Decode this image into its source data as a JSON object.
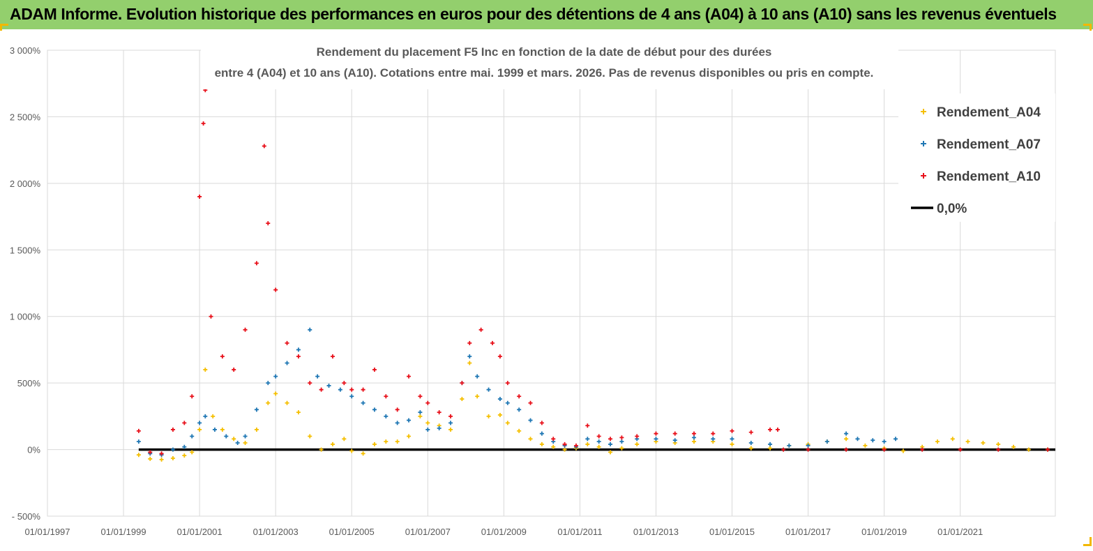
{
  "header": {
    "title": "ADAM Informe. Evolution historique des performances en euros pour des détentions de 4 ans (A04) à 10 ans (A10) sans les revenus éventuels"
  },
  "colors": {
    "banner": "#93cf6d",
    "a04": "#f5bf00",
    "a07": "#1f77b4",
    "a10": "#e8101a",
    "zero": "#000000",
    "grid": "#d9d9d9"
  },
  "chart_data": {
    "type": "scatter",
    "title_lines": [
      "Rendement du placement F5 Inc en fonction de la date de début pour des durées",
      "entre 4 (A04) et 10 ans (A10).  Cotations entre mai. 1999 et mars. 2026. Pas de revenus disponibles ou pris en compte."
    ],
    "x_tick_labels": [
      "01/01/1997",
      "01/01/1999",
      "01/01/2001",
      "01/01/2003",
      "01/01/2005",
      "01/01/2007",
      "01/01/2009",
      "01/01/2011",
      "01/01/2013",
      "01/01/2015",
      "01/01/2017",
      "01/01/2019",
      "01/01/2021"
    ],
    "x_range_years": [
      1997,
      2023.5
    ],
    "y_tick_labels": [
      "3 000%",
      "2 500%",
      "2 000%",
      "1 500%",
      "1 000%",
      "500%",
      "0%",
      "- 500%"
    ],
    "y_ticks": [
      3000,
      2500,
      2000,
      1500,
      1000,
      500,
      0,
      -500
    ],
    "ylim": [
      -500,
      3000
    ],
    "series": [
      {
        "name": "Rendement_A04",
        "marker": "+",
        "points": [
          [
            1999.4,
            -40
          ],
          [
            1999.7,
            -70
          ],
          [
            2000.0,
            -75
          ],
          [
            2000.3,
            -65
          ],
          [
            2000.6,
            -45
          ],
          [
            2000.8,
            -20
          ],
          [
            2001.0,
            150
          ],
          [
            2001.15,
            600
          ],
          [
            2001.35,
            250
          ],
          [
            2001.6,
            150
          ],
          [
            2001.9,
            80
          ],
          [
            2002.2,
            50
          ],
          [
            2002.5,
            150
          ],
          [
            2002.8,
            350
          ],
          [
            2003.0,
            420
          ],
          [
            2003.3,
            350
          ],
          [
            2003.6,
            280
          ],
          [
            2003.9,
            100
          ],
          [
            2004.2,
            0
          ],
          [
            2004.5,
            40
          ],
          [
            2004.8,
            80
          ],
          [
            2005.0,
            -10
          ],
          [
            2005.3,
            -30
          ],
          [
            2005.6,
            40
          ],
          [
            2005.9,
            60
          ],
          [
            2006.2,
            60
          ],
          [
            2006.5,
            100
          ],
          [
            2006.8,
            250
          ],
          [
            2007.0,
            200
          ],
          [
            2007.3,
            180
          ],
          [
            2007.6,
            150
          ],
          [
            2007.9,
            380
          ],
          [
            2008.1,
            650
          ],
          [
            2008.3,
            400
          ],
          [
            2008.6,
            250
          ],
          [
            2008.9,
            260
          ],
          [
            2009.1,
            200
          ],
          [
            2009.4,
            140
          ],
          [
            2009.7,
            80
          ],
          [
            2010.0,
            40
          ],
          [
            2010.3,
            20
          ],
          [
            2010.6,
            0
          ],
          [
            2010.9,
            10
          ],
          [
            2011.2,
            40
          ],
          [
            2011.5,
            20
          ],
          [
            2011.8,
            -20
          ],
          [
            2012.1,
            10
          ],
          [
            2012.5,
            40
          ],
          [
            2013.0,
            60
          ],
          [
            2013.5,
            50
          ],
          [
            2014.0,
            60
          ],
          [
            2014.5,
            60
          ],
          [
            2015.0,
            40
          ],
          [
            2015.5,
            10
          ],
          [
            2016.0,
            10
          ],
          [
            2016.5,
            30
          ],
          [
            2017.0,
            40
          ],
          [
            2017.5,
            60
          ],
          [
            2018.0,
            80
          ],
          [
            2018.5,
            30
          ],
          [
            2019.0,
            10
          ],
          [
            2019.5,
            -10
          ],
          [
            2020.0,
            20
          ],
          [
            2020.4,
            60
          ],
          [
            2020.8,
            80
          ],
          [
            2021.2,
            60
          ],
          [
            2021.6,
            50
          ],
          [
            2022.0,
            40
          ],
          [
            2022.4,
            20
          ],
          [
            2022.8,
            0
          ],
          [
            2023.3,
            0
          ]
        ]
      },
      {
        "name": "Rendement_A07",
        "marker": "+",
        "points": [
          [
            1999.4,
            60
          ],
          [
            1999.7,
            -30
          ],
          [
            2000.0,
            -40
          ],
          [
            2000.3,
            0
          ],
          [
            2000.6,
            20
          ],
          [
            2000.8,
            100
          ],
          [
            2001.0,
            200
          ],
          [
            2001.15,
            250
          ],
          [
            2001.4,
            150
          ],
          [
            2001.7,
            100
          ],
          [
            2002.0,
            50
          ],
          [
            2002.2,
            100
          ],
          [
            2002.5,
            300
          ],
          [
            2002.8,
            500
          ],
          [
            2003.0,
            550
          ],
          [
            2003.3,
            650
          ],
          [
            2003.6,
            750
          ],
          [
            2003.9,
            900
          ],
          [
            2004.1,
            550
          ],
          [
            2004.4,
            480
          ],
          [
            2004.7,
            450
          ],
          [
            2005.0,
            400
          ],
          [
            2005.3,
            350
          ],
          [
            2005.6,
            300
          ],
          [
            2005.9,
            250
          ],
          [
            2006.2,
            200
          ],
          [
            2006.5,
            220
          ],
          [
            2006.8,
            280
          ],
          [
            2007.0,
            150
          ],
          [
            2007.3,
            160
          ],
          [
            2007.6,
            200
          ],
          [
            2007.9,
            500
          ],
          [
            2008.1,
            700
          ],
          [
            2008.3,
            550
          ],
          [
            2008.6,
            450
          ],
          [
            2008.9,
            380
          ],
          [
            2009.1,
            350
          ],
          [
            2009.4,
            300
          ],
          [
            2009.7,
            220
          ],
          [
            2010.0,
            120
          ],
          [
            2010.3,
            60
          ],
          [
            2010.6,
            30
          ],
          [
            2010.9,
            20
          ],
          [
            2011.2,
            80
          ],
          [
            2011.5,
            60
          ],
          [
            2011.8,
            40
          ],
          [
            2012.1,
            60
          ],
          [
            2012.5,
            80
          ],
          [
            2013.0,
            80
          ],
          [
            2013.5,
            70
          ],
          [
            2014.0,
            90
          ],
          [
            2014.5,
            80
          ],
          [
            2015.0,
            80
          ],
          [
            2015.5,
            50
          ],
          [
            2016.0,
            40
          ],
          [
            2016.5,
            30
          ],
          [
            2017.0,
            30
          ],
          [
            2017.5,
            60
          ],
          [
            2018.0,
            120
          ],
          [
            2018.3,
            80
          ],
          [
            2018.7,
            70
          ],
          [
            2019.0,
            60
          ],
          [
            2019.3,
            80
          ]
        ]
      },
      {
        "name": "Rendement_A10",
        "marker": "+",
        "points": [
          [
            1999.4,
            140
          ],
          [
            1999.7,
            -20
          ],
          [
            2000.0,
            -30
          ],
          [
            2000.3,
            150
          ],
          [
            2000.6,
            200
          ],
          [
            2000.8,
            400
          ],
          [
            2001.0,
            1900
          ],
          [
            2001.1,
            2450
          ],
          [
            2001.15,
            2700
          ],
          [
            2001.3,
            1000
          ],
          [
            2001.6,
            700
          ],
          [
            2001.9,
            600
          ],
          [
            2002.2,
            900
          ],
          [
            2002.5,
            1400
          ],
          [
            2002.7,
            2280
          ],
          [
            2002.8,
            1700
          ],
          [
            2003.0,
            1200
          ],
          [
            2003.3,
            800
          ],
          [
            2003.6,
            700
          ],
          [
            2003.9,
            500
          ],
          [
            2004.2,
            450
          ],
          [
            2004.5,
            700
          ],
          [
            2004.8,
            500
          ],
          [
            2005.0,
            450
          ],
          [
            2005.3,
            450
          ],
          [
            2005.6,
            600
          ],
          [
            2005.9,
            400
          ],
          [
            2006.2,
            300
          ],
          [
            2006.5,
            550
          ],
          [
            2006.8,
            400
          ],
          [
            2007.0,
            350
          ],
          [
            2007.3,
            280
          ],
          [
            2007.6,
            250
          ],
          [
            2007.9,
            500
          ],
          [
            2008.1,
            800
          ],
          [
            2008.4,
            900
          ],
          [
            2008.7,
            800
          ],
          [
            2008.9,
            700
          ],
          [
            2009.1,
            500
          ],
          [
            2009.4,
            400
          ],
          [
            2009.7,
            350
          ],
          [
            2010.0,
            200
          ],
          [
            2010.3,
            80
          ],
          [
            2010.6,
            40
          ],
          [
            2010.9,
            30
          ],
          [
            2011.2,
            180
          ],
          [
            2011.5,
            100
          ],
          [
            2011.8,
            80
          ],
          [
            2012.1,
            90
          ],
          [
            2012.5,
            100
          ],
          [
            2013.0,
            120
          ],
          [
            2013.5,
            120
          ],
          [
            2014.0,
            120
          ],
          [
            2014.5,
            120
          ],
          [
            2015.0,
            140
          ],
          [
            2015.5,
            130
          ],
          [
            2016.0,
            150
          ],
          [
            2016.2,
            150
          ],
          [
            2016.35,
            0
          ],
          [
            2017.0,
            0
          ],
          [
            2018.0,
            0
          ],
          [
            2019.0,
            0
          ],
          [
            2020.0,
            0
          ],
          [
            2021.0,
            0
          ],
          [
            2022.0,
            0
          ],
          [
            2023.3,
            0
          ]
        ]
      },
      {
        "name": "0,0%",
        "type": "line",
        "x": [
          1999.4,
          2023.5
        ],
        "values": [
          0,
          0
        ]
      }
    ],
    "legend_position": "top-right"
  }
}
